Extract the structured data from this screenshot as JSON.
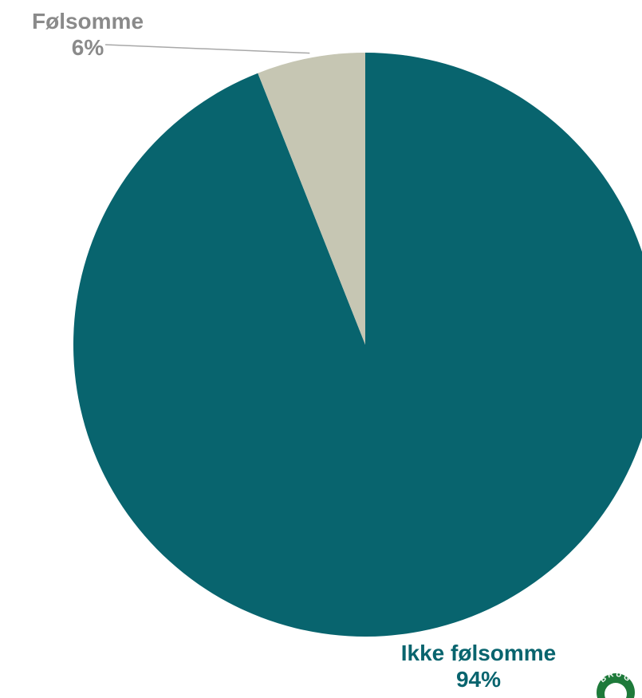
{
  "chart_data": {
    "type": "pie",
    "slices": [
      {
        "name": "Ikke følsomme",
        "value": 94,
        "label": "94%",
        "color": "#08646e"
      },
      {
        "name": "Følsomme",
        "value": 6,
        "label": "6%",
        "color": "#c6c6b3"
      }
    ],
    "label_colors": {
      "Ikke følsomme": "#08646e",
      "Følsomme": "#8a8a8a"
    },
    "leader_line_color": "#a8a8a8",
    "start": "12 o'clock",
    "direction": "clockwise"
  },
  "logo": {
    "text": "BRUG",
    "ring_color": "#1e7a3a",
    "icon": "logo-badge-icon"
  }
}
